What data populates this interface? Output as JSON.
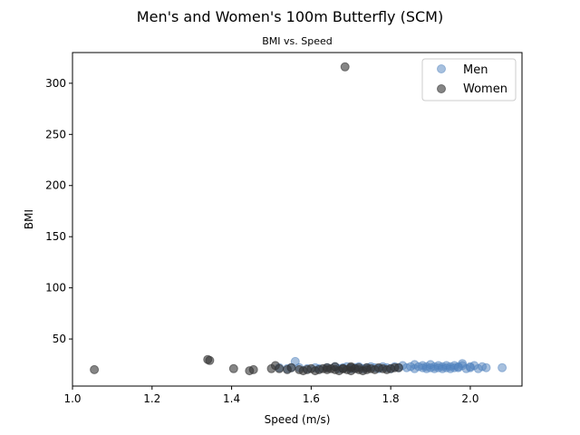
{
  "chart_data": {
    "type": "scatter",
    "title": "Men's and Women's 100m Butterfly (SCM)",
    "subtitle": "BMI vs. Speed",
    "xlabel": "Speed (m/s)",
    "ylabel": "BMI",
    "xlim": [
      1.0,
      2.13
    ],
    "ylim": [
      4,
      330
    ],
    "xticks": [
      1.0,
      1.2,
      1.4,
      1.6,
      1.8,
      2.0
    ],
    "yticks": [
      50,
      100,
      150,
      200,
      250,
      300
    ],
    "grid": false,
    "legend_position": "top-right",
    "series": [
      {
        "name": "Men",
        "color": "#4f81bd",
        "x": [
          1.52,
          1.54,
          1.55,
          1.56,
          1.57,
          1.59,
          1.61,
          1.62,
          1.64,
          1.66,
          1.67,
          1.68,
          1.69,
          1.7,
          1.71,
          1.72,
          1.73,
          1.74,
          1.75,
          1.76,
          1.77,
          1.78,
          1.79,
          1.8,
          1.81,
          1.82,
          1.83,
          1.84,
          1.85,
          1.86,
          1.86,
          1.87,
          1.88,
          1.88,
          1.89,
          1.89,
          1.9,
          1.9,
          1.91,
          1.91,
          1.92,
          1.92,
          1.93,
          1.93,
          1.94,
          1.94,
          1.95,
          1.95,
          1.96,
          1.96,
          1.97,
          1.97,
          1.98,
          1.99,
          2.0,
          2.0,
          2.01,
          2.02,
          2.03,
          2.04,
          2.08,
          1.98
        ],
        "y": [
          22,
          21,
          22,
          28,
          22,
          21,
          22,
          21,
          22,
          23,
          21,
          22,
          23,
          21,
          22,
          23,
          21,
          22,
          23,
          22,
          21,
          23,
          22,
          21,
          23,
          22,
          24,
          22,
          23,
          25,
          21,
          23,
          22,
          24,
          21,
          23,
          25,
          22,
          23,
          21,
          24,
          22,
          23,
          21,
          24,
          22,
          23,
          21,
          24,
          22,
          23,
          22,
          24,
          21,
          23,
          22,
          24,
          21,
          23,
          22,
          22,
          26
        ]
      },
      {
        "name": "Women",
        "color": "#333333",
        "x": [
          1.055,
          1.34,
          1.345,
          1.405,
          1.445,
          1.455,
          1.5,
          1.51,
          1.52,
          1.54,
          1.55,
          1.57,
          1.58,
          1.59,
          1.6,
          1.61,
          1.62,
          1.63,
          1.64,
          1.65,
          1.66,
          1.67,
          1.68,
          1.685,
          1.69,
          1.7,
          1.7,
          1.71,
          1.72,
          1.72,
          1.73,
          1.74,
          1.75,
          1.76,
          1.77,
          1.78,
          1.79,
          1.8,
          1.81,
          1.82,
          1.64,
          1.66,
          1.68,
          1.7,
          1.74
        ],
        "y": [
          20,
          30,
          29,
          21,
          19,
          20,
          21,
          24,
          21,
          20,
          22,
          20,
          19,
          20,
          21,
          19,
          20,
          21,
          20,
          21,
          20,
          19,
          21,
          316,
          20,
          22,
          19,
          21,
          20,
          22,
          19,
          20,
          21,
          20,
          22,
          21,
          20,
          21,
          22,
          22,
          22,
          23,
          21,
          23,
          22
        ]
      }
    ]
  }
}
